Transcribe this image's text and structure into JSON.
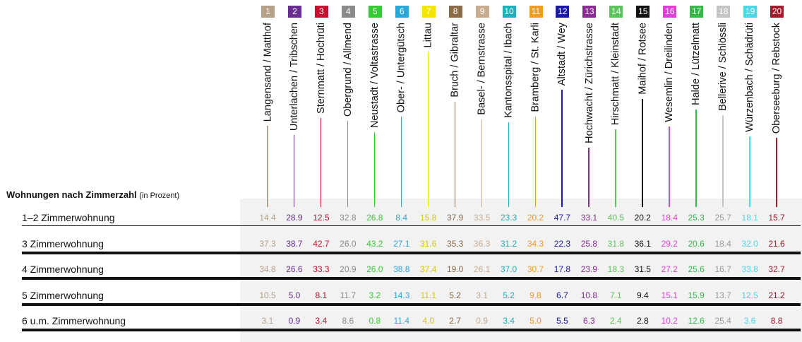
{
  "title": "Wohnungen nach Zimmerzahl",
  "subtitle": "(in Prozent)",
  "districts": [
    {
      "num": "1",
      "name": "Langensand / Matthof",
      "color": "#b5a089"
    },
    {
      "num": "2",
      "name": "Unterlachen / Tribschen",
      "color": "#6a2d90"
    },
    {
      "num": "3",
      "name": "Sternmatt / Hochrüti",
      "color": "#c8102e"
    },
    {
      "num": "4",
      "name": "Obergrund / Allmend",
      "color": "#8a8a8a"
    },
    {
      "num": "5",
      "name": "Neustadt / Voltastrasse",
      "color": "#33cc33"
    },
    {
      "num": "6",
      "name": "Ober- / Untergütsch",
      "color": "#2aa8d8"
    },
    {
      "num": "7",
      "name": "Littau",
      "color": "#f2e600"
    },
    {
      "num": "8",
      "name": "Bruch / Gibraltar",
      "color": "#8b6a4a"
    },
    {
      "num": "9",
      "name": "Basel- / Bernstrasse",
      "color": "#c9ab8f"
    },
    {
      "num": "10",
      "name": "Kantonsspital / Ibach",
      "color": "#1ab2ba"
    },
    {
      "num": "11",
      "name": "Bramberg / St. Karli",
      "color": "#f29a24"
    },
    {
      "num": "12",
      "name": "Altstadt / Wey",
      "color": "#1a1aa8"
    },
    {
      "num": "13",
      "name": "Hochwacht / Zürichstrasse",
      "color": "#8a2a92"
    },
    {
      "num": "14",
      "name": "Hirschmatt / Kleinstadt",
      "color": "#5cc45c"
    },
    {
      "num": "15",
      "name": "Maihof / Rotsee",
      "color": "#111111"
    },
    {
      "num": "16",
      "name": "Wesemlin / Dreilinden",
      "color": "#e040d8"
    },
    {
      "num": "17",
      "name": "Halde / Lützelmatt",
      "color": "#36b84a"
    },
    {
      "num": "18",
      "name": "Bellerive / Schlössli",
      "color": "#c4c4c4"
    },
    {
      "num": "19",
      "name": "Würzenbach / Schädrüti",
      "color": "#48d8e8"
    },
    {
      "num": "20",
      "name": "Oberseeburg / Rebstock",
      "color": "#a01c2c"
    }
  ],
  "rows": [
    {
      "label": "1–2 Zimmerwohnung",
      "values": [
        "14.4",
        "28.9",
        "12.5",
        "32.8",
        "26.8",
        "8.4",
        "15.8",
        "37.9",
        "33.5",
        "23.3",
        "20.2",
        "47.7",
        "33.1",
        "40.5",
        "20.2",
        "18.4",
        "25.3",
        "25.7",
        "18.1",
        "15.7"
      ]
    },
    {
      "label": "3 Zimmerwohnung",
      "values": [
        "37.3",
        "38.7",
        "42.7",
        "26.0",
        "43.2",
        "27.1",
        "31.6",
        "35.3",
        "36.3",
        "31.2",
        "34.3",
        "22.3",
        "25.8",
        "31.8",
        "36.1",
        "29.2",
        "20.6",
        "18.4",
        "32.0",
        "21.6"
      ]
    },
    {
      "label": "4 Zimmerwohnung",
      "values": [
        "34.8",
        "26.6",
        "33.3",
        "20.9",
        "26.0",
        "38.8",
        "37.4",
        "19.0",
        "26.1",
        "37.0",
        "30.7",
        "17.8",
        "23.9",
        "18.3",
        "31.5",
        "27.2",
        "25.6",
        "16.7",
        "33.8",
        "32.7"
      ]
    },
    {
      "label": "5 Zimmerwohnung",
      "values": [
        "10.5",
        "5.0",
        "8.1",
        "11.7",
        "3.2",
        "14.3",
        "11.1",
        "5.2",
        "3.1",
        "5.2",
        "9.8",
        "6.7",
        "10.8",
        "7.1",
        "9.4",
        "15.1",
        "15.9",
        "13.7",
        "12.5",
        "21.2"
      ]
    },
    {
      "label": "6 u.m. Zimmerwohnung",
      "values": [
        "3.1",
        "0.9",
        "3.4",
        "8.6",
        "0.8",
        "11.4",
        "4.0",
        "2.7",
        "0.9",
        "3.4",
        "5.0",
        "5.5",
        "6.3",
        "2.4",
        "2.8",
        "10.2",
        "12.6",
        "25.4",
        "3.6",
        "8.8"
      ]
    }
  ]
}
